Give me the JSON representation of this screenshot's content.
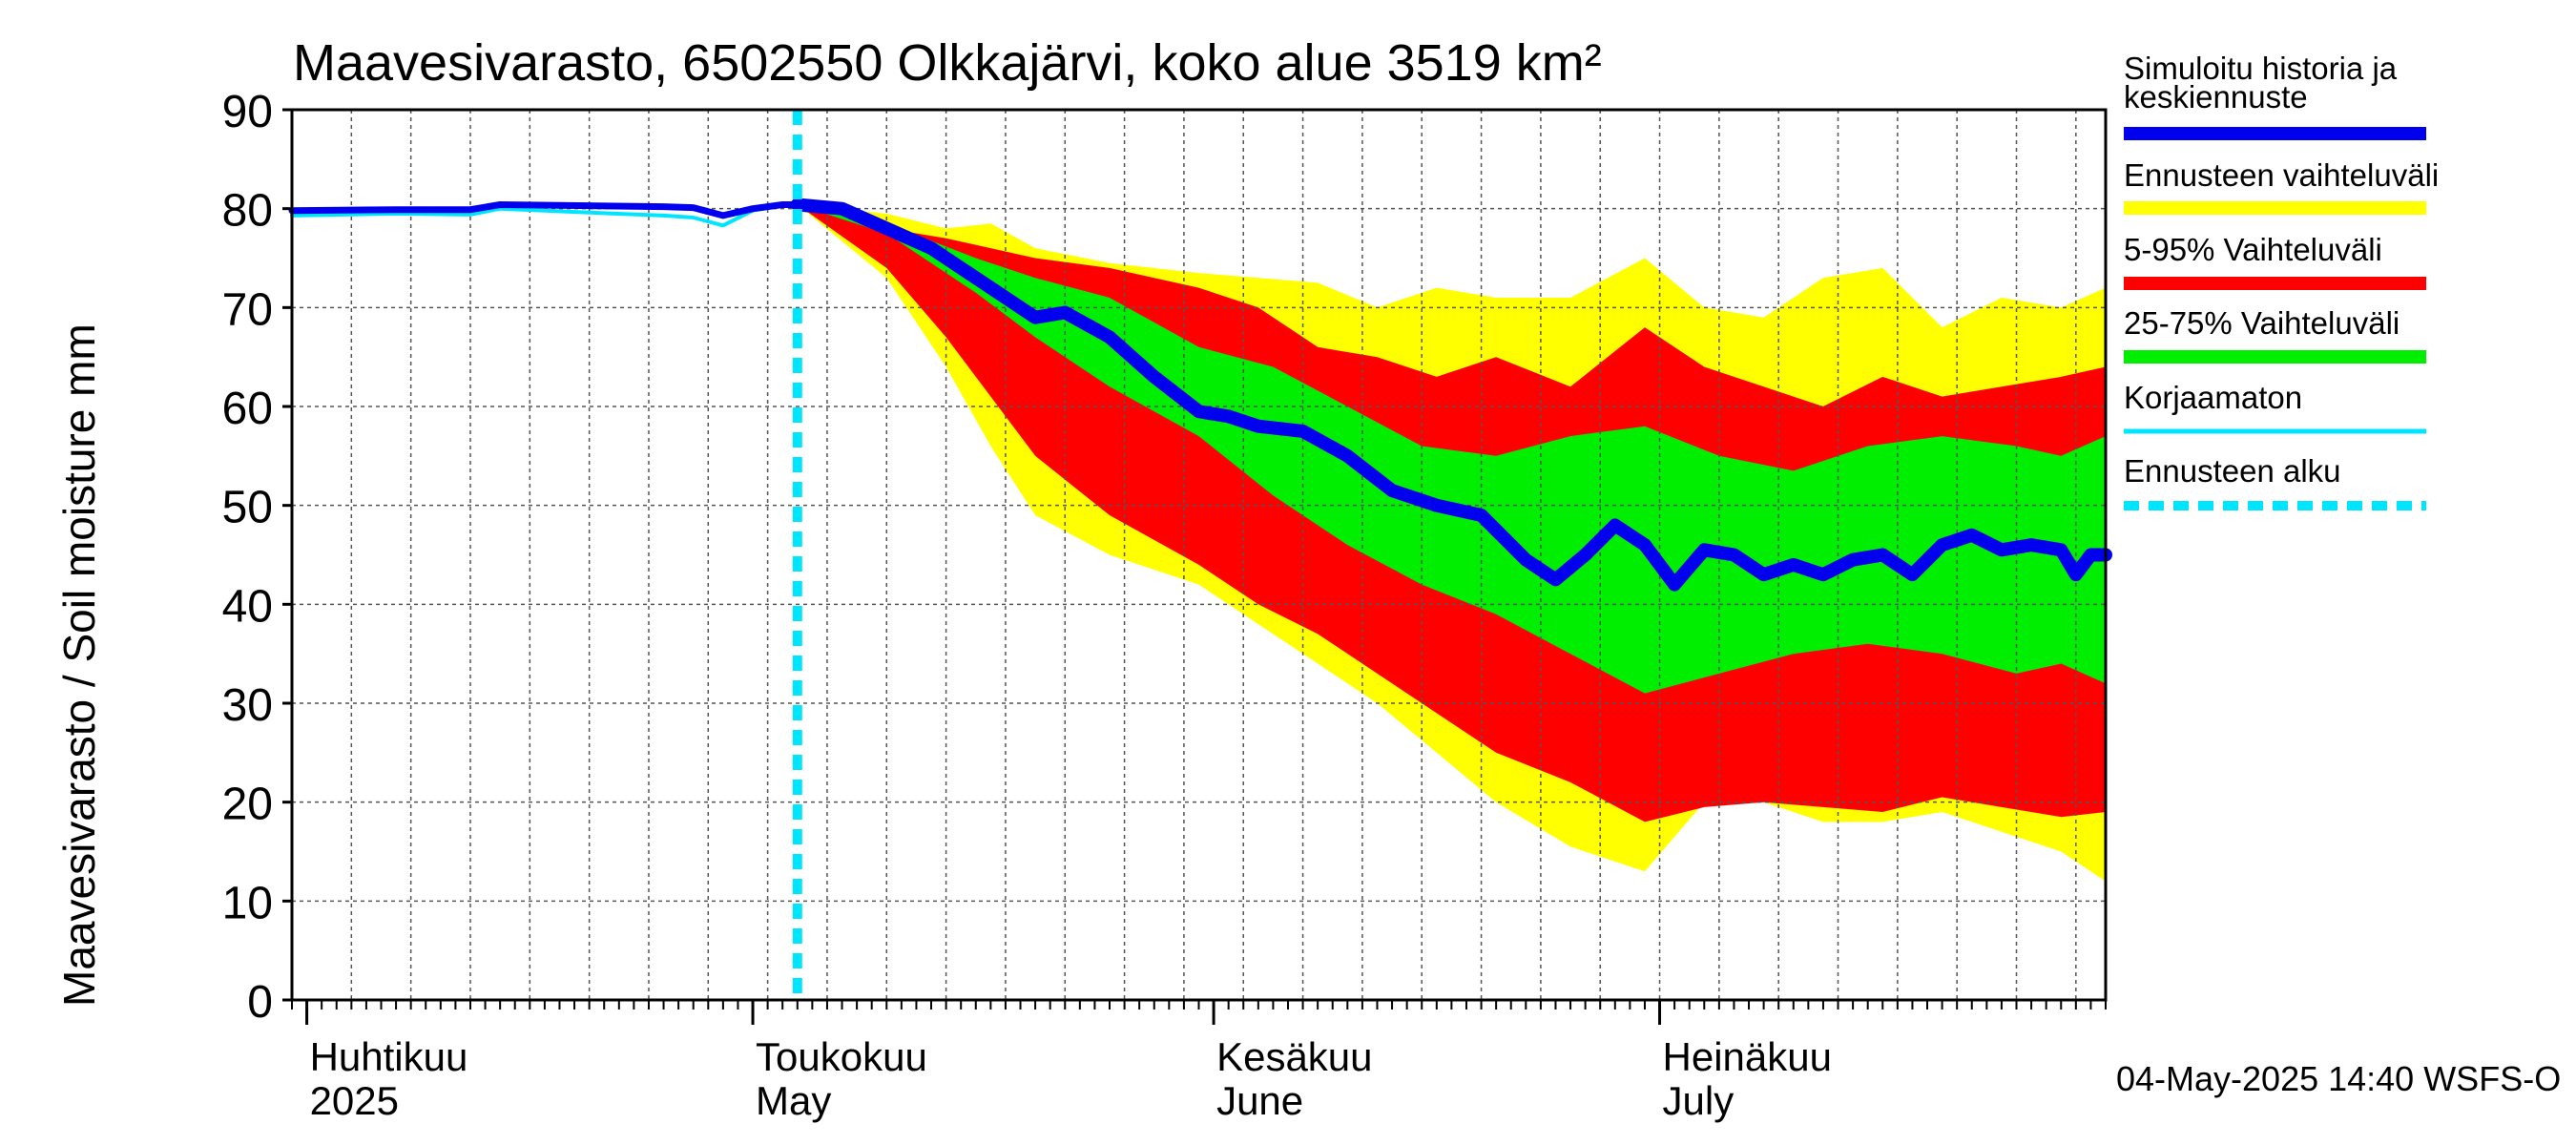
{
  "chart_data": {
    "type": "area",
    "title": "Maavesivarasto, 6502550 Olkkajärvi, koko alue 3519 km²",
    "ylabel": "Maavesivarasto / Soil moisture   mm",
    "ylim": [
      0,
      90
    ],
    "yticks": [
      0,
      10,
      20,
      30,
      40,
      50,
      60,
      70,
      80,
      90
    ],
    "xlim": [
      "2025-03-31",
      "2025-07-31"
    ],
    "grid": true,
    "x_month_labels": [
      {
        "date": "2025-04-01",
        "fi": "Huhtikuu",
        "en": "2025"
      },
      {
        "date": "2025-05-01",
        "fi": "Toukokuu",
        "en": "May"
      },
      {
        "date": "2025-06-01",
        "fi": "Kesäkuu",
        "en": "June"
      },
      {
        "date": "2025-07-01",
        "fi": "Heinäkuu",
        "en": "July"
      }
    ],
    "forecast_start": "2025-05-04",
    "legend": {
      "position": "right",
      "entries": [
        {
          "label": "Simuloitu historia ja keskiennuste",
          "color": "#0000ee",
          "style": "solid-thick"
        },
        {
          "label": "Ennusteen vaihteluväli",
          "color": "#ffff00",
          "style": "band"
        },
        {
          "label": "5-95% Vaihteluväli",
          "color": "#ff0000",
          "style": "band"
        },
        {
          "label": "25-75% Vaihteluväli",
          "color": "#00ee00",
          "style": "band"
        },
        {
          "label": "Korjaamaton",
          "color": "#00e5ff",
          "style": "solid"
        },
        {
          "label": "Ennusteen alku",
          "color": "#00e5ff",
          "style": "dashed"
        }
      ]
    },
    "series": {
      "history": {
        "x": [
          "2025-03-31",
          "2025-04-07",
          "2025-04-12",
          "2025-04-14",
          "2025-04-20",
          "2025-04-25",
          "2025-04-27",
          "2025-04-29",
          "2025-05-01",
          "2025-05-03",
          "2025-05-05",
          "2025-05-07"
        ],
        "y": [
          79.8,
          79.9,
          79.9,
          80.4,
          80.3,
          80.2,
          80.1,
          79.3,
          80.0,
          80.4,
          80.4,
          80.0
        ]
      },
      "uncorrected": {
        "x": [
          "2025-03-31",
          "2025-04-07",
          "2025-04-12",
          "2025-04-14",
          "2025-04-20",
          "2025-04-25",
          "2025-04-27",
          "2025-04-29",
          "2025-05-01",
          "2025-05-03",
          "2025-05-05",
          "2025-05-07"
        ],
        "y": [
          79.3,
          79.5,
          79.4,
          80.0,
          79.6,
          79.3,
          79.1,
          78.3,
          79.8,
          80.3,
          80.3,
          80.0
        ]
      },
      "median": {
        "x": [
          "2025-05-04",
          "2025-05-07",
          "2025-05-10",
          "2025-05-13",
          "2025-05-16",
          "2025-05-19",
          "2025-05-20",
          "2025-05-22",
          "2025-05-25",
          "2025-05-28",
          "2025-05-31",
          "2025-06-02",
          "2025-06-04",
          "2025-06-07",
          "2025-06-10",
          "2025-06-13",
          "2025-06-16",
          "2025-06-19",
          "2025-06-22",
          "2025-06-24",
          "2025-06-26",
          "2025-06-28",
          "2025-06-30",
          "2025-07-02",
          "2025-07-04",
          "2025-07-06",
          "2025-07-08",
          "2025-07-10",
          "2025-07-12",
          "2025-07-14",
          "2025-07-16",
          "2025-07-18",
          "2025-07-20",
          "2025-07-22",
          "2025-07-24",
          "2025-07-26",
          "2025-07-28",
          "2025-07-29",
          "2025-07-30",
          "2025-07-31"
        ],
        "y": [
          80.4,
          80.0,
          78.0,
          76.0,
          73.0,
          70.0,
          69.0,
          69.5,
          67.0,
          63.0,
          59.5,
          59.0,
          58.0,
          57.5,
          55.0,
          51.5,
          50.0,
          49.0,
          44.5,
          42.5,
          45.0,
          48.0,
          46.0,
          42.0,
          45.5,
          45.0,
          43.0,
          44.0,
          43.0,
          44.5,
          45.0,
          43.0,
          46.0,
          47.0,
          45.5,
          46.0,
          45.5,
          43.0,
          45.0,
          45.0
        ]
      },
      "band_25_75": {
        "x": [
          "2025-05-04",
          "2025-05-10",
          "2025-05-16",
          "2025-05-20",
          "2025-05-25",
          "2025-05-31",
          "2025-06-05",
          "2025-06-10",
          "2025-06-15",
          "2025-06-20",
          "2025-06-25",
          "2025-06-30",
          "2025-07-05",
          "2025-07-10",
          "2025-07-15",
          "2025-07-20",
          "2025-07-25",
          "2025-07-28",
          "2025-07-31"
        ],
        "upper": [
          80.4,
          78.5,
          75.0,
          73.0,
          71.0,
          66.0,
          64.0,
          60.0,
          56.0,
          55.0,
          57.0,
          58.0,
          55.0,
          53.5,
          56.0,
          57.0,
          56.0,
          55.0,
          57.0
        ],
        "lower": [
          80.4,
          77.5,
          71.5,
          67.0,
          62.0,
          57.0,
          51.0,
          46.0,
          42.0,
          39.0,
          35.0,
          31.0,
          33.0,
          35.0,
          36.0,
          35.0,
          33.0,
          34.0,
          32.0
        ]
      },
      "band_5_95": {
        "x": [
          "2025-05-04",
          "2025-05-10",
          "2025-05-14",
          "2025-05-17",
          "2025-05-20",
          "2025-05-25",
          "2025-05-31",
          "2025-06-04",
          "2025-06-08",
          "2025-06-12",
          "2025-06-16",
          "2025-06-20",
          "2025-06-25",
          "2025-06-30",
          "2025-07-04",
          "2025-07-08",
          "2025-07-12",
          "2025-07-16",
          "2025-07-20",
          "2025-07-24",
          "2025-07-28",
          "2025-07-31"
        ],
        "upper": [
          80.4,
          78.0,
          77.0,
          76.0,
          75.0,
          74.0,
          72.0,
          70.0,
          66.0,
          65.0,
          63.0,
          65.0,
          62.0,
          68.0,
          64.0,
          62.0,
          60.0,
          63.0,
          61.0,
          62.0,
          63.0,
          64.0
        ],
        "lower": [
          80.4,
          74.0,
          67.0,
          61.0,
          55.0,
          49.0,
          44.0,
          40.0,
          37.0,
          33.0,
          29.0,
          25.0,
          22.0,
          18.0,
          19.5,
          20.0,
          19.5,
          19.0,
          20.5,
          19.5,
          18.5,
          19.0
        ]
      },
      "band_full": {
        "x": [
          "2025-05-04",
          "2025-05-10",
          "2025-05-14",
          "2025-05-17",
          "2025-05-20",
          "2025-05-25",
          "2025-05-31",
          "2025-06-04",
          "2025-06-08",
          "2025-06-12",
          "2025-06-16",
          "2025-06-20",
          "2025-06-25",
          "2025-06-30",
          "2025-07-04",
          "2025-07-08",
          "2025-07-12",
          "2025-07-16",
          "2025-07-20",
          "2025-07-24",
          "2025-07-28",
          "2025-07-31"
        ],
        "upper": [
          80.4,
          79.5,
          78.0,
          78.5,
          76.0,
          74.5,
          73.5,
          73.0,
          72.5,
          70.0,
          72.0,
          71.0,
          71.0,
          75.0,
          70.0,
          69.0,
          73.0,
          74.0,
          68.0,
          71.0,
          70.0,
          72.0
        ],
        "lower": [
          80.4,
          73.0,
          64.0,
          56.0,
          49.0,
          45.0,
          42.0,
          38.0,
          34.0,
          30.0,
          25.0,
          20.0,
          15.5,
          13.0,
          20.0,
          20.0,
          18.0,
          18.0,
          19.0,
          17.0,
          15.0,
          12.0
        ]
      }
    }
  },
  "footer": {
    "timestamp": "04-May-2025 14:40 WSFS-O"
  }
}
